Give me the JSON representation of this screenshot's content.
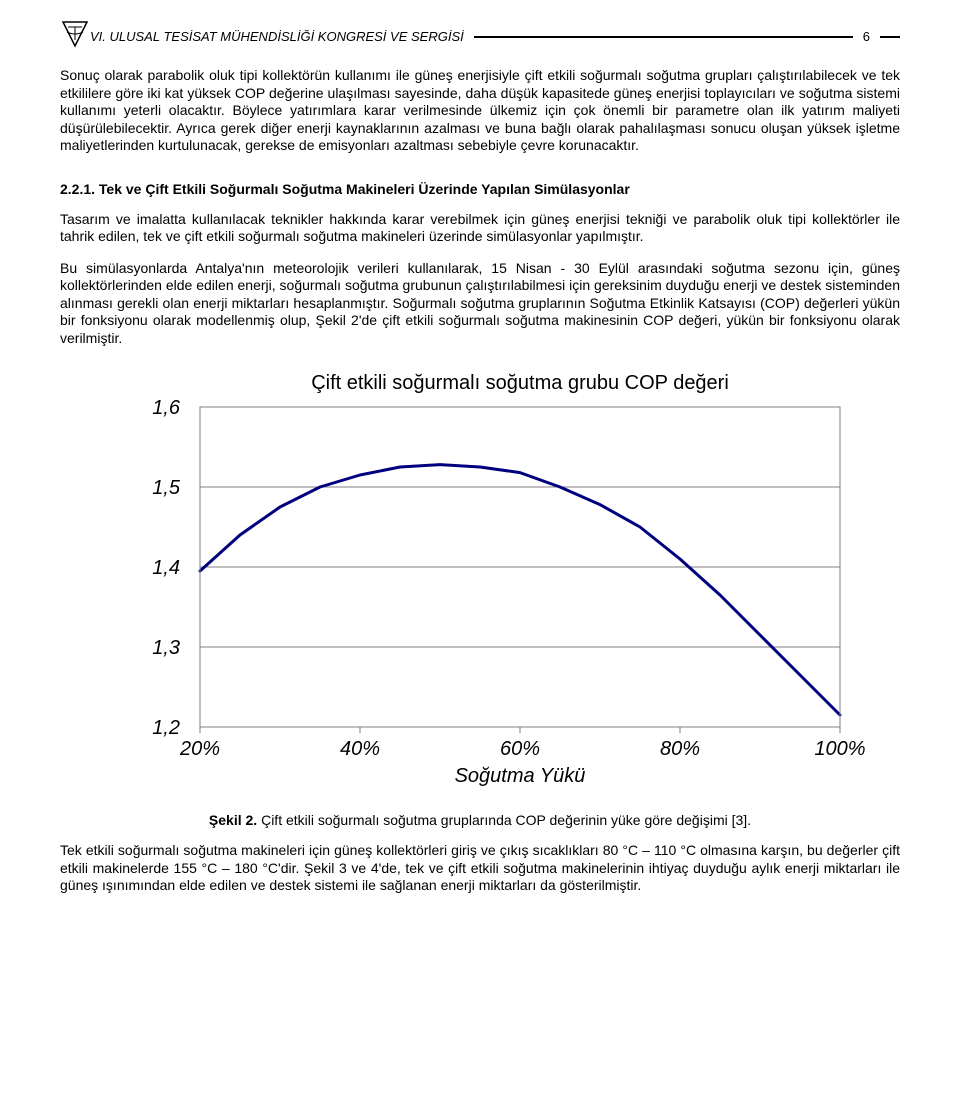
{
  "header": {
    "title_prefix": "VI. ULUSAL TESİSAT MÜHENDİSLİĞİ KONGRESİ VE SERGİSİ",
    "page_number": "6"
  },
  "paragraphs": {
    "p1": "Sonuç olarak parabolik oluk tipi kollektörün kullanımı ile güneş enerjisiyle çift etkili soğurmalı soğutma grupları çalıştırılabilecek ve tek etkililere göre iki kat yüksek COP değerine ulaşılması sayesinde, daha düşük kapasitede güneş enerjisi toplayıcıları ve soğutma sistemi kullanımı yeterli olacaktır. Böylece yatırımlara karar verilmesinde ülkemiz için çok önemli bir parametre olan ilk yatırım maliyeti düşürülebilecektir. Ayrıca gerek diğer enerji kaynaklarının azalması ve buna bağlı olarak pahalılaşması sonucu oluşan yüksek işletme maliyetlerinden kurtulunacak, gerekse de emisyonları azaltması sebebiyle çevre korunacaktır.",
    "heading": "2.2.1. Tek ve Çift Etkili Soğurmalı Soğutma Makineleri Üzerinde Yapılan Simülasyonlar",
    "p2": "Tasarım ve imalatta kullanılacak teknikler hakkında karar verebilmek için güneş enerjisi tekniği ve parabolik oluk tipi kollektörler ile tahrik edilen, tek ve çift etkili  soğurmalı soğutma makineleri üzerinde simülasyonlar yapılmıştır.",
    "p3": "Bu simülasyonlarda Antalya'nın meteorolojik verileri kullanılarak, 15 Nisan - 30 Eylül arasındaki soğutma sezonu için, güneş kollektörlerinden elde edilen enerji, soğurmalı soğutma grubunun çalıştırılabilmesi için gereksinim duyduğu enerji ve destek sisteminden alınması gerekli olan enerji miktarları hesaplanmıştır. Soğurmalı soğutma gruplarının Soğutma Etkinlik Katsayısı (COP) değerleri yükün bir fonksiyonu olarak modellenmiş olup, Şekil 2'de çift etkili soğurmalı soğutma makinesinin COP değeri, yükün bir fonksiyonu olarak verilmiştir.",
    "fig_caption_b": "Şekil 2.",
    "fig_caption_rest": " Çift etkili soğurmalı soğutma gruplarında COP değerinin yüke göre değişimi [3].",
    "p4": "Tek etkili soğurmalı soğutma makineleri için güneş kollektörleri giriş ve çıkış sıcaklıkları   80 °C – 110 °C olmasına karşın, bu değerler çift etkili makinelerde 155 °C – 180 °C'dir. Şekil 3 ve 4'de, tek ve çift etkili soğutma makinelerinin ihtiyaç duyduğu aylık enerji miktarları ile güneş ışınımından elde edilen ve destek sistemi ile sağlanan enerji miktarları da gösterilmiştir."
  },
  "chart": {
    "type": "line",
    "title": "Çift etkili soğurmalı soğutma grubu COP değeri",
    "xlabel": "Soğutma Yükü",
    "x_ticks": [
      "20%",
      "40%",
      "60%",
      "80%",
      "100%"
    ],
    "x_values": [
      20,
      40,
      60,
      80,
      100
    ],
    "y_ticks": [
      "1,2",
      "1,3",
      "1,4",
      "1,5",
      "1,6"
    ],
    "y_values_ticks": [
      1.2,
      1.3,
      1.4,
      1.5,
      1.6
    ],
    "xlim": [
      20,
      100
    ],
    "ylim": [
      1.2,
      1.6
    ],
    "grid_color": "#7f7f7f",
    "line_color": "#000080",
    "line_width": 3,
    "background_color": "#ffffff",
    "label_fontsize": 20,
    "tick_fontsize": 20,
    "border_color": "#7f7f7f",
    "series": {
      "x": [
        20,
        25,
        30,
        35,
        40,
        45,
        50,
        55,
        60,
        65,
        70,
        75,
        80,
        85,
        90,
        95,
        100
      ],
      "y": [
        1.395,
        1.44,
        1.475,
        1.5,
        1.515,
        1.525,
        1.528,
        1.525,
        1.518,
        1.5,
        1.478,
        1.45,
        1.41,
        1.365,
        1.315,
        1.265,
        1.215
      ]
    }
  }
}
